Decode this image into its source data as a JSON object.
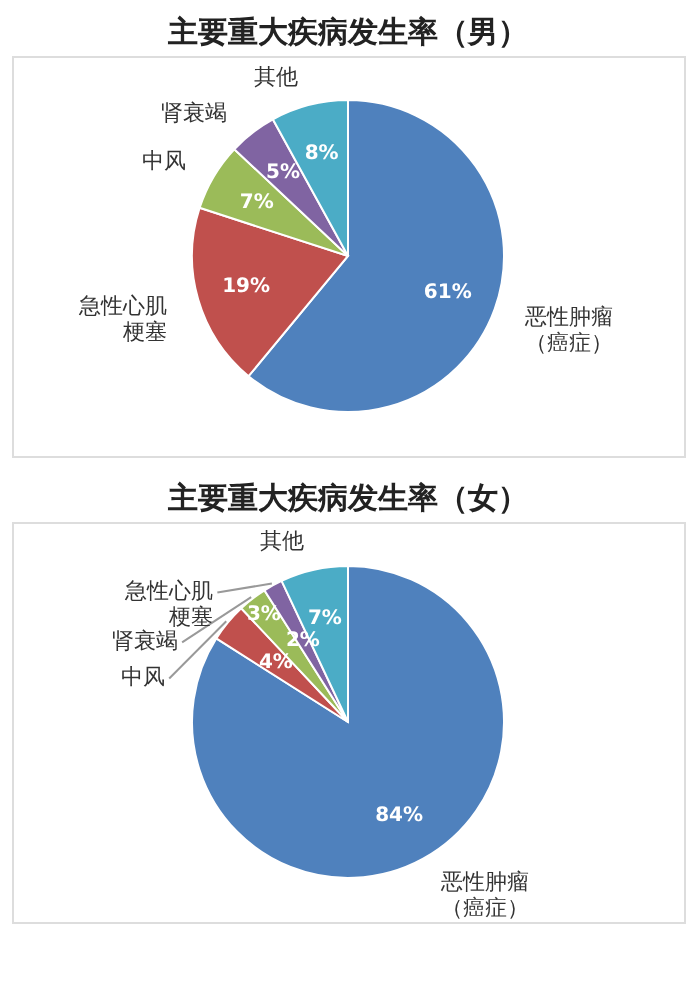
{
  "chart_data": [
    {
      "type": "pie",
      "title": "主要重大疾病发生率（男）",
      "categories": [
        "恶性肿瘤（癌症）",
        "急性心肌梗塞",
        "中风",
        "肾衰竭",
        "其他"
      ],
      "values": [
        61,
        19,
        7,
        5,
        8
      ],
      "value_labels": [
        "61%",
        "19%",
        "7%",
        "5%",
        "8%"
      ],
      "colors": [
        "#4f81bd",
        "#c0504d",
        "#9bbb59",
        "#8064a2",
        "#4bacc6"
      ]
    },
    {
      "type": "pie",
      "title": "主要重大疾病发生率（女）",
      "categories": [
        "恶性肿瘤（癌症）",
        "中风",
        "肾衰竭",
        "急性心肌梗塞",
        "其他"
      ],
      "values": [
        84,
        4,
        3,
        2,
        7
      ],
      "value_labels": [
        "84%",
        "4%",
        "3%",
        "2%",
        "7%"
      ],
      "colors": [
        "#4f81bd",
        "#c0504d",
        "#9bbb59",
        "#8064a2",
        "#4bacc6"
      ]
    }
  ]
}
